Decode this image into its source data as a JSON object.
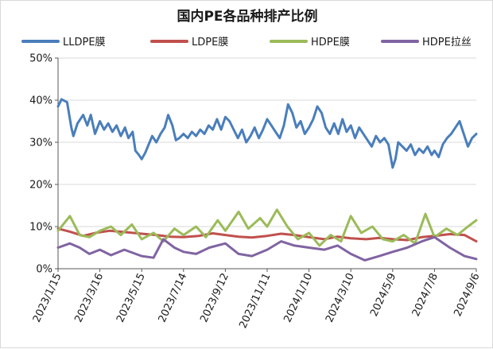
{
  "chart_data": {
    "type": "line",
    "title": "国内PE各品种排产比例",
    "xlabel": "",
    "ylabel": "",
    "ylim": [
      0,
      50
    ],
    "yticks": [
      0,
      10,
      20,
      30,
      40,
      50
    ],
    "ytick_labels": [
      "0%",
      "10%",
      "20%",
      "30%",
      "40%",
      "50%"
    ],
    "x_range": [
      "2023/1/15",
      "2024/9/6"
    ],
    "xtick_labels": [
      "2023/1/15",
      "2023/3/16",
      "2023/5/15",
      "2023/7/14",
      "2023/9/12",
      "2023/11/11",
      "2024/1/10",
      "2024/3/10",
      "2024/5/9",
      "2024/7/8",
      "2024/9/6"
    ],
    "grid": "horizontal",
    "legend_position": "top",
    "series": [
      {
        "name": "LLDPE膜",
        "color": "#4a7ebb",
        "points": [
          [
            "2023/1/15",
            38.5
          ],
          [
            "2023/1/20",
            40.2
          ],
          [
            "2023/1/28",
            39.5
          ],
          [
            "2023/2/3",
            33.5
          ],
          [
            "2023/2/6",
            31.5
          ],
          [
            "2023/2/12",
            34.5
          ],
          [
            "2023/2/20",
            36.5
          ],
          [
            "2023/2/26",
            34.0
          ],
          [
            "2023/3/3",
            36.5
          ],
          [
            "2023/3/9",
            32.0
          ],
          [
            "2023/3/16",
            35.0
          ],
          [
            "2023/3/22",
            33.0
          ],
          [
            "2023/3/28",
            34.5
          ],
          [
            "2023/4/3",
            32.5
          ],
          [
            "2023/4/9",
            34.0
          ],
          [
            "2023/4/15",
            31.5
          ],
          [
            "2023/4/21",
            33.5
          ],
          [
            "2023/4/26",
            31.0
          ],
          [
            "2023/5/2",
            32.5
          ],
          [
            "2023/5/6",
            28.0
          ],
          [
            "2023/5/11",
            27.0
          ],
          [
            "2023/5/15",
            26.0
          ],
          [
            "2023/5/20",
            27.5
          ],
          [
            "2023/5/25",
            29.5
          ],
          [
            "2023/5/30",
            31.5
          ],
          [
            "2023/6/5",
            30.0
          ],
          [
            "2023/6/11",
            32.0
          ],
          [
            "2023/6/17",
            33.5
          ],
          [
            "2023/6/22",
            36.5
          ],
          [
            "2023/6/28",
            34.0
          ],
          [
            "2023/7/3",
            30.5
          ],
          [
            "2023/7/8",
            31.0
          ],
          [
            "2023/7/14",
            32.0
          ],
          [
            "2023/7/20",
            31.0
          ],
          [
            "2023/7/26",
            32.5
          ],
          [
            "2023/8/1",
            31.5
          ],
          [
            "2023/8/7",
            33.0
          ],
          [
            "2023/8/13",
            32.0
          ],
          [
            "2023/8/19",
            34.0
          ],
          [
            "2023/8/25",
            33.0
          ],
          [
            "2023/8/31",
            35.5
          ],
          [
            "2023/9/6",
            33.0
          ],
          [
            "2023/9/12",
            36.0
          ],
          [
            "2023/9/18",
            35.0
          ],
          [
            "2023/9/24",
            33.0
          ],
          [
            "2023/9/30",
            31.0
          ],
          [
            "2023/10/6",
            33.0
          ],
          [
            "2023/10/12",
            30.0
          ],
          [
            "2023/10/18",
            31.5
          ],
          [
            "2023/10/24",
            33.5
          ],
          [
            "2023/10/30",
            31.0
          ],
          [
            "2023/11/5",
            33.0
          ],
          [
            "2023/11/11",
            35.5
          ],
          [
            "2023/11/17",
            34.0
          ],
          [
            "2023/11/23",
            32.5
          ],
          [
            "2023/11/29",
            31.0
          ],
          [
            "2023/12/5",
            34.0
          ],
          [
            "2023/12/11",
            39.0
          ],
          [
            "2023/12/17",
            37.0
          ],
          [
            "2023/12/23",
            33.5
          ],
          [
            "2023/12/29",
            35.0
          ],
          [
            "2024/1/4",
            32.0
          ],
          [
            "2024/1/10",
            33.5
          ],
          [
            "2024/1/16",
            35.5
          ],
          [
            "2024/1/22",
            38.5
          ],
          [
            "2024/1/28",
            37.0
          ],
          [
            "2024/2/3",
            33.5
          ],
          [
            "2024/2/9",
            32.0
          ],
          [
            "2024/2/15",
            34.5
          ],
          [
            "2024/2/21",
            32.0
          ],
          [
            "2024/2/27",
            35.5
          ],
          [
            "2024/3/4",
            32.5
          ],
          [
            "2024/3/10",
            34.0
          ],
          [
            "2024/3/16",
            31.0
          ],
          [
            "2024/3/22",
            33.5
          ],
          [
            "2024/3/28",
            32.0
          ],
          [
            "2024/4/3",
            30.5
          ],
          [
            "2024/4/9",
            29.0
          ],
          [
            "2024/4/15",
            31.5
          ],
          [
            "2024/4/21",
            30.0
          ],
          [
            "2024/4/27",
            31.0
          ],
          [
            "2024/5/3",
            29.5
          ],
          [
            "2024/5/9",
            24.0
          ],
          [
            "2024/5/13",
            26.0
          ],
          [
            "2024/5/17",
            30.0
          ],
          [
            "2024/5/23",
            29.0
          ],
          [
            "2024/5/29",
            28.0
          ],
          [
            "2024/6/4",
            29.5
          ],
          [
            "2024/6/10",
            27.0
          ],
          [
            "2024/6/16",
            28.5
          ],
          [
            "2024/6/22",
            27.5
          ],
          [
            "2024/6/28",
            29.0
          ],
          [
            "2024/7/4",
            27.0
          ],
          [
            "2024/7/8",
            28.0
          ],
          [
            "2024/7/14",
            26.5
          ],
          [
            "2024/7/20",
            29.5
          ],
          [
            "2024/7/26",
            31.0
          ],
          [
            "2024/8/1",
            32.0
          ],
          [
            "2024/8/7",
            33.5
          ],
          [
            "2024/8/13",
            35.0
          ],
          [
            "2024/8/19",
            32.0
          ],
          [
            "2024/8/25",
            29.0
          ],
          [
            "2024/8/31",
            31.0
          ],
          [
            "2024/9/6",
            32.0
          ]
        ]
      },
      {
        "name": "LDPE膜",
        "color": "#c0504d",
        "points": [
          [
            "2023/1/15",
            9.5
          ],
          [
            "2023/2/1",
            8.8
          ],
          [
            "2023/2/20",
            7.8
          ],
          [
            "2023/3/10",
            8.5
          ],
          [
            "2023/3/30",
            9.0
          ],
          [
            "2023/4/20",
            8.7
          ],
          [
            "2023/5/15",
            8.3
          ],
          [
            "2023/6/5",
            8.0
          ],
          [
            "2023/6/25",
            7.6
          ],
          [
            "2023/7/14",
            7.5
          ],
          [
            "2023/8/5",
            7.8
          ],
          [
            "2023/8/25",
            8.4
          ],
          [
            "2023/9/12",
            8.0
          ],
          [
            "2023/10/1",
            7.6
          ],
          [
            "2023/10/20",
            7.4
          ],
          [
            "2023/11/11",
            7.8
          ],
          [
            "2023/12/1",
            8.3
          ],
          [
            "2023/12/20",
            8.0
          ],
          [
            "2024/1/10",
            7.5
          ],
          [
            "2024/2/1",
            7.0
          ],
          [
            "2024/2/20",
            7.6
          ],
          [
            "2024/3/10",
            7.2
          ],
          [
            "2024/4/1",
            7.0
          ],
          [
            "2024/4/20",
            7.3
          ],
          [
            "2024/5/9",
            7.0
          ],
          [
            "2024/5/30",
            6.8
          ],
          [
            "2024/6/20",
            7.5
          ],
          [
            "2024/7/8",
            7.8
          ],
          [
            "2024/7/30",
            8.2
          ],
          [
            "2024/8/20",
            8.0
          ],
          [
            "2024/9/6",
            6.5
          ]
        ]
      },
      {
        "name": "HDPE膜",
        "color": "#9bbb59",
        "points": [
          [
            "2023/1/15",
            9.0
          ],
          [
            "2023/2/1",
            12.5
          ],
          [
            "2023/2/15",
            8.0
          ],
          [
            "2023/3/1",
            7.5
          ],
          [
            "2023/3/16",
            9.0
          ],
          [
            "2023/4/1",
            10.0
          ],
          [
            "2023/4/15",
            8.0
          ],
          [
            "2023/5/1",
            10.5
          ],
          [
            "2023/5/15",
            7.0
          ],
          [
            "2023/6/1",
            8.5
          ],
          [
            "2023/6/15",
            6.5
          ],
          [
            "2023/7/1",
            9.5
          ],
          [
            "2023/7/14",
            8.0
          ],
          [
            "2023/8/1",
            10.0
          ],
          [
            "2023/8/15",
            7.5
          ],
          [
            "2023/9/1",
            11.5
          ],
          [
            "2023/9/12",
            9.0
          ],
          [
            "2023/10/1",
            13.5
          ],
          [
            "2023/10/15",
            9.5
          ],
          [
            "2023/11/1",
            12.0
          ],
          [
            "2023/11/11",
            10.0
          ],
          [
            "2023/11/25",
            14.0
          ],
          [
            "2023/12/10",
            10.0
          ],
          [
            "2023/12/25",
            7.0
          ],
          [
            "2024/1/10",
            8.5
          ],
          [
            "2024/1/25",
            5.5
          ],
          [
            "2024/2/10",
            8.0
          ],
          [
            "2024/2/25",
            6.5
          ],
          [
            "2024/3/10",
            12.5
          ],
          [
            "2024/3/25",
            8.5
          ],
          [
            "2024/4/10",
            10.0
          ],
          [
            "2024/4/25",
            7.0
          ],
          [
            "2024/5/9",
            6.5
          ],
          [
            "2024/5/25",
            8.0
          ],
          [
            "2024/6/10",
            6.0
          ],
          [
            "2024/6/25",
            13.0
          ],
          [
            "2024/7/8",
            7.5
          ],
          [
            "2024/7/25",
            9.5
          ],
          [
            "2024/8/10",
            8.0
          ],
          [
            "2024/8/25",
            10.0
          ],
          [
            "2024/9/6",
            11.5
          ]
        ]
      },
      {
        "name": "HDPE拉丝",
        "color": "#8064a2",
        "points": [
          [
            "2023/1/15",
            5.0
          ],
          [
            "2023/2/1",
            6.0
          ],
          [
            "2023/2/15",
            5.0
          ],
          [
            "2023/3/1",
            3.5
          ],
          [
            "2023/3/16",
            4.5
          ],
          [
            "2023/4/1",
            3.2
          ],
          [
            "2023/4/20",
            4.5
          ],
          [
            "2023/5/15",
            3.0
          ],
          [
            "2023/6/1",
            2.6
          ],
          [
            "2023/6/15",
            7.0
          ],
          [
            "2023/7/1",
            5.0
          ],
          [
            "2023/7/14",
            4.0
          ],
          [
            "2023/8/1",
            3.5
          ],
          [
            "2023/8/20",
            5.0
          ],
          [
            "2023/9/12",
            6.0
          ],
          [
            "2023/10/1",
            3.5
          ],
          [
            "2023/10/20",
            3.0
          ],
          [
            "2023/11/11",
            4.5
          ],
          [
            "2023/12/1",
            6.5
          ],
          [
            "2023/12/20",
            5.5
          ],
          [
            "2024/1/10",
            5.0
          ],
          [
            "2024/2/1",
            4.5
          ],
          [
            "2024/2/20",
            5.5
          ],
          [
            "2024/3/10",
            3.5
          ],
          [
            "2024/3/30",
            2.0
          ],
          [
            "2024/4/20",
            3.0
          ],
          [
            "2024/5/9",
            4.0
          ],
          [
            "2024/5/30",
            5.0
          ],
          [
            "2024/6/20",
            6.5
          ],
          [
            "2024/7/8",
            7.5
          ],
          [
            "2024/7/30",
            5.0
          ],
          [
            "2024/8/20",
            3.0
          ],
          [
            "2024/9/6",
            2.3
          ]
        ]
      }
    ]
  }
}
